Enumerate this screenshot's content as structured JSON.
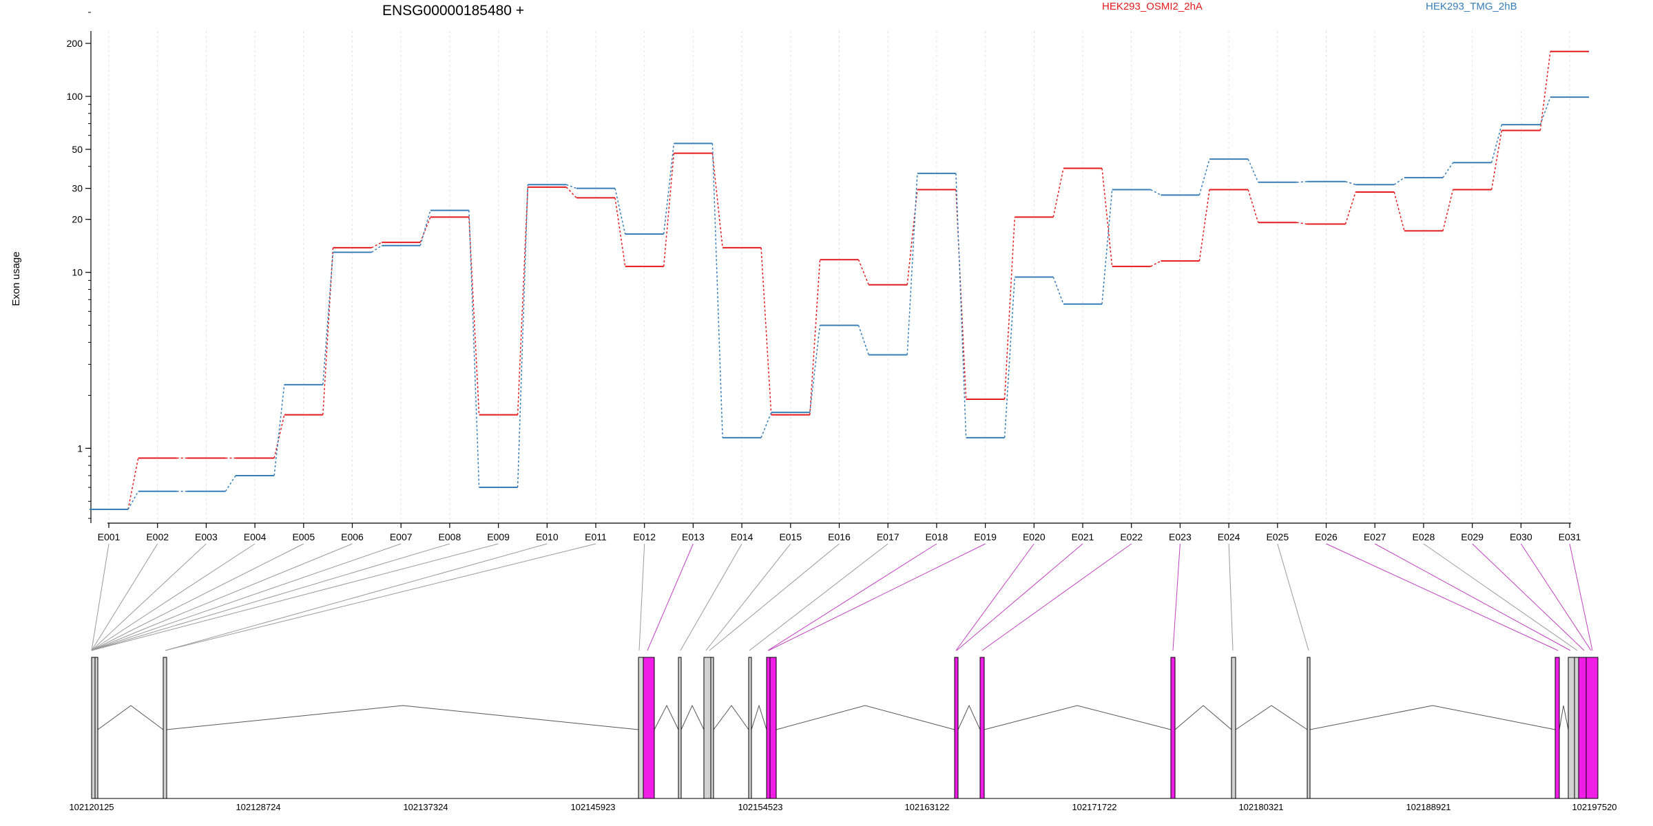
{
  "chart_data": {
    "type": "line",
    "title": "ENSG00000185480 +",
    "ylabel": "Exon usage",
    "xlabel": "",
    "y_scale": "log",
    "ylim": [
      0.4,
      300
    ],
    "y_ticks": [
      1,
      10,
      20,
      30,
      50,
      100,
      200
    ],
    "grid": "vertical",
    "legend_placement": "top",
    "categories": [
      "E001",
      "E002",
      "E003",
      "E004",
      "E005",
      "E006",
      "E007",
      "E008",
      "E009",
      "E010",
      "E011",
      "E012",
      "E013",
      "E014",
      "E015",
      "E016",
      "E017",
      "E018",
      "E019",
      "E020",
      "E021",
      "E022",
      "E023",
      "E024",
      "E025",
      "E026",
      "E027",
      "E028",
      "E029",
      "E030",
      "E031"
    ],
    "series": [
      {
        "name": "HEK293_OSMI2_2hA",
        "color": "#e41a1c",
        "values": [
          0.45,
          0.88,
          0.88,
          0.88,
          1.55,
          13.8,
          14.8,
          20.6,
          1.55,
          30.5,
          26.5,
          10.8,
          47.5,
          13.8,
          1.55,
          11.8,
          8.5,
          29.5,
          1.9,
          20.6,
          39.0,
          10.8,
          11.6,
          29.5,
          19.2,
          18.8,
          28.6,
          17.2,
          29.5,
          64.0,
          180.0
        ]
      },
      {
        "name": "HEK293_TMG_2hB",
        "color": "#377eb8",
        "values": [
          0.45,
          0.57,
          0.57,
          0.7,
          2.3,
          13.0,
          14.2,
          22.5,
          0.6,
          31.5,
          30.0,
          16.5,
          54.0,
          1.15,
          1.6,
          5.0,
          3.4,
          36.5,
          1.15,
          9.4,
          6.6,
          29.5,
          27.5,
          44.0,
          32.5,
          32.8,
          31.5,
          34.5,
          42.0,
          69.0,
          99.0
        ]
      }
    ],
    "gene_model": {
      "coordinate_ticks": [
        "102120125",
        "102128724",
        "102137324",
        "102145923",
        "102154523",
        "102163122",
        "102171722",
        "102180321",
        "102188921",
        "102197520"
      ],
      "exon_highlight_color": "#f01de6",
      "exon_normal_color": "#d3d3d3"
    }
  }
}
